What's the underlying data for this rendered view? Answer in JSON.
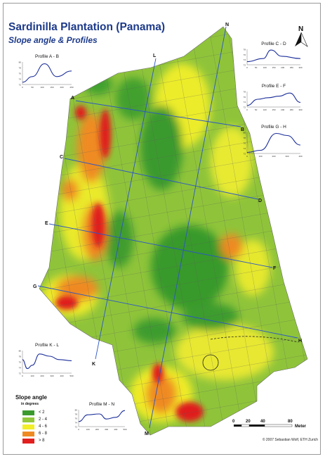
{
  "title": "Sardinilla Plantation (Panama)",
  "subtitle": "Slope angle & Profiles",
  "north_label": "N",
  "profile_points": [
    "A",
    "B",
    "C",
    "D",
    "E",
    "F",
    "G",
    "H",
    "K",
    "L",
    "M",
    "N"
  ],
  "profiles": [
    {
      "label": "Profile A - B",
      "y_ticks": [
        "80",
        "78",
        "76",
        "74",
        "72"
      ],
      "x_ticks": [
        "0",
        "50",
        "100",
        "150",
        "200",
        "250"
      ]
    },
    {
      "label": "Profile C - D",
      "y_ticks": [
        "78",
        "76",
        "74",
        "72"
      ],
      "x_ticks": [
        "0",
        "50",
        "100",
        "150",
        "200",
        "250",
        "300"
      ]
    },
    {
      "label": "Profile E - F",
      "y_ticks": [
        "78",
        "76",
        "74",
        "72"
      ],
      "x_ticks": [
        "0",
        "50",
        "100",
        "150",
        "200",
        "250",
        "300"
      ]
    },
    {
      "label": "Profile G - H",
      "y_ticks": [
        "80",
        "78",
        "76",
        "74",
        "72"
      ],
      "x_ticks": [
        "0",
        "100",
        "200",
        "300",
        "400"
      ]
    },
    {
      "label": "Profile K - L",
      "y_ticks": [
        "80",
        "78",
        "76",
        "74",
        "72"
      ],
      "x_ticks": [
        "0",
        "100",
        "200",
        "300",
        "400",
        "500"
      ]
    },
    {
      "label": "Profile M - N",
      "y_ticks": [
        "80",
        "78",
        "76",
        "74",
        "72"
      ],
      "x_ticks": [
        "0",
        "100",
        "200",
        "300",
        "400",
        "500"
      ]
    }
  ],
  "legend": {
    "title": "Slope angle",
    "subtitle": "in degrees",
    "items": [
      {
        "label": "< 2",
        "color": "#3b9a2e"
      },
      {
        "label": "2 - 4",
        "color": "#92c83a"
      },
      {
        "label": "4 - 6",
        "color": "#f2ee28"
      },
      {
        "label": "6 - 8",
        "color": "#ef8a22"
      },
      {
        "label": "> 8",
        "color": "#e21f1f"
      }
    ]
  },
  "scale_bar": {
    "ticks": [
      "0",
      "20",
      "40",
      "80"
    ],
    "unit": "Meter"
  },
  "credit": "© 2007 Sebastian Wolf, ETH Zurich"
}
